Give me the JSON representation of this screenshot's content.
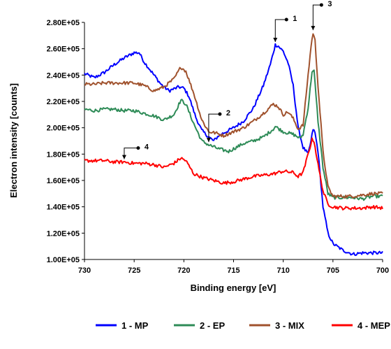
{
  "chart_data": {
    "type": "line",
    "xlabel": "Binding energy [eV]",
    "ylabel": "Electron intensity [counts]",
    "xlim": [
      730,
      700
    ],
    "ylim": [
      100000,
      280000
    ],
    "x_reversed": true,
    "grid": false,
    "legend_position": "bottom",
    "x_ticks": [
      730,
      725,
      720,
      715,
      710,
      705,
      700
    ],
    "x_tick_labels": [
      "730",
      "725",
      "720",
      "715",
      "710",
      "705",
      "700"
    ],
    "y_ticks": [
      100000,
      120000,
      140000,
      160000,
      180000,
      200000,
      220000,
      240000,
      260000,
      280000
    ],
    "y_tick_labels": [
      "1.00E+05",
      "1.20E+05",
      "1.40E+05",
      "1.60E+05",
      "1.80E+05",
      "2.00E+05",
      "2.20E+05",
      "2.40E+05",
      "2.60E+05",
      "2.80E+05"
    ],
    "series": [
      {
        "name": "1 - MP",
        "color": "#0000ff",
        "points": [
          [
            730,
            241000
          ],
          [
            729,
            238000
          ],
          [
            728,
            242000
          ],
          [
            727,
            248000
          ],
          [
            726,
            253000
          ],
          [
            725,
            257000
          ],
          [
            724.5,
            257000
          ],
          [
            724,
            250000
          ],
          [
            723,
            240000
          ],
          [
            722.3,
            233000
          ],
          [
            721.5,
            228000
          ],
          [
            720.5,
            231000
          ],
          [
            720,
            230000
          ],
          [
            719.5,
            224000
          ],
          [
            718.8,
            208000
          ],
          [
            718.2,
            198000
          ],
          [
            717.5,
            193000
          ],
          [
            717,
            190000
          ],
          [
            716.5,
            194000
          ],
          [
            716,
            196000
          ],
          [
            715,
            200000
          ],
          [
            714,
            205000
          ],
          [
            713,
            215000
          ],
          [
            712,
            232000
          ],
          [
            711.3,
            248000
          ],
          [
            710.8,
            263000
          ],
          [
            710.5,
            262000
          ],
          [
            710,
            258000
          ],
          [
            709.5,
            249000
          ],
          [
            709,
            232000
          ],
          [
            708.5,
            200000
          ],
          [
            708,
            185000
          ],
          [
            707.5,
            180000
          ],
          [
            707.2,
            190000
          ],
          [
            707,
            199000
          ],
          [
            706.8,
            196000
          ],
          [
            706.5,
            182000
          ],
          [
            706,
            140000
          ],
          [
            705.5,
            120000
          ],
          [
            705,
            112000
          ],
          [
            704,
            107000
          ],
          [
            703,
            104000
          ],
          [
            702,
            105000
          ],
          [
            701,
            105000
          ],
          [
            700,
            105000
          ]
        ]
      },
      {
        "name": "2 - EP",
        "color": "#2e8b57",
        "points": [
          [
            730,
            214000
          ],
          [
            729,
            213000
          ],
          [
            728,
            214000
          ],
          [
            727,
            214000
          ],
          [
            726,
            213000
          ],
          [
            725,
            213000
          ],
          [
            724,
            211000
          ],
          [
            723,
            209000
          ],
          [
            722,
            206000
          ],
          [
            721,
            210000
          ],
          [
            720.3,
            221000
          ],
          [
            719.8,
            218000
          ],
          [
            719,
            203000
          ],
          [
            718.2,
            190000
          ],
          [
            717.5,
            187000
          ],
          [
            716.5,
            184000
          ],
          [
            715.5,
            182000
          ],
          [
            715,
            184000
          ],
          [
            714,
            188000
          ],
          [
            713,
            190000
          ],
          [
            712,
            193000
          ],
          [
            711,
            199000
          ],
          [
            710.8,
            201000
          ],
          [
            710,
            197000
          ],
          [
            709,
            195000
          ],
          [
            708.3,
            192000
          ],
          [
            708,
            195000
          ],
          [
            707.5,
            215000
          ],
          [
            707.1,
            243000
          ],
          [
            706.9,
            243000
          ],
          [
            706.5,
            205000
          ],
          [
            706,
            170000
          ],
          [
            705.5,
            150000
          ],
          [
            705,
            147000
          ],
          [
            704,
            147000
          ],
          [
            703,
            147000
          ],
          [
            702,
            146000
          ],
          [
            701,
            148000
          ],
          [
            700,
            148000
          ]
        ]
      },
      {
        "name": "3 - MIX",
        "color": "#a0522d",
        "points": [
          [
            730,
            233000
          ],
          [
            729,
            233000
          ],
          [
            728,
            234000
          ],
          [
            727,
            234000
          ],
          [
            726,
            234000
          ],
          [
            725,
            234000
          ],
          [
            724,
            232000
          ],
          [
            723,
            228000
          ],
          [
            722,
            231000
          ],
          [
            721,
            237000
          ],
          [
            720.3,
            246000
          ],
          [
            719.8,
            243000
          ],
          [
            719,
            226000
          ],
          [
            718.2,
            206000
          ],
          [
            717.5,
            197000
          ],
          [
            716.8,
            196000
          ],
          [
            716,
            194000
          ],
          [
            715,
            197000
          ],
          [
            714,
            200000
          ],
          [
            713,
            205000
          ],
          [
            712,
            211000
          ],
          [
            711,
            218000
          ],
          [
            710.5,
            216000
          ],
          [
            710,
            210000
          ],
          [
            709.5,
            212000
          ],
          [
            709,
            207000
          ],
          [
            708.5,
            199000
          ],
          [
            708,
            202000
          ],
          [
            707.5,
            240000
          ],
          [
            707.2,
            262000
          ],
          [
            707,
            272000
          ],
          [
            706.8,
            266000
          ],
          [
            706.5,
            232000
          ],
          [
            706,
            182000
          ],
          [
            705.5,
            155000
          ],
          [
            705,
            148000
          ],
          [
            704,
            148000
          ],
          [
            703,
            148000
          ],
          [
            702,
            149000
          ],
          [
            701,
            150000
          ],
          [
            700,
            150000
          ]
        ]
      },
      {
        "name": "4 - MEP",
        "color": "#ff0000",
        "points": [
          [
            730,
            175000
          ],
          [
            729,
            175000
          ],
          [
            728,
            175000
          ],
          [
            727,
            174000
          ],
          [
            726,
            174000
          ],
          [
            725,
            173000
          ],
          [
            724,
            173000
          ],
          [
            723,
            172000
          ],
          [
            722,
            170000
          ],
          [
            721,
            173000
          ],
          [
            720.3,
            177000
          ],
          [
            719.8,
            175000
          ],
          [
            719,
            165000
          ],
          [
            718,
            162000
          ],
          [
            717,
            160000
          ],
          [
            716,
            158000
          ],
          [
            715,
            159000
          ],
          [
            714,
            161000
          ],
          [
            713,
            163000
          ],
          [
            712,
            164000
          ],
          [
            711,
            165000
          ],
          [
            710,
            167000
          ],
          [
            709,
            166000
          ],
          [
            708.5,
            163000
          ],
          [
            708,
            166000
          ],
          [
            707.5,
            180000
          ],
          [
            707.1,
            191000
          ],
          [
            706.9,
            190000
          ],
          [
            706.5,
            172000
          ],
          [
            706,
            152000
          ],
          [
            705.5,
            142000
          ],
          [
            705,
            140000
          ],
          [
            704,
            139000
          ],
          [
            703,
            139000
          ],
          [
            702,
            139000
          ],
          [
            701,
            140000
          ],
          [
            700,
            139000
          ]
        ]
      }
    ],
    "callouts": [
      {
        "label": "1",
        "series_index": 0,
        "x": 710.8,
        "y": 263000
      },
      {
        "label": "2",
        "series_index": 1,
        "x": 717.5,
        "y": 187000
      },
      {
        "label": "3",
        "series_index": 2,
        "x": 707,
        "y": 272000
      },
      {
        "label": "4",
        "series_index": 3,
        "x": 726,
        "y": 174000
      }
    ]
  }
}
